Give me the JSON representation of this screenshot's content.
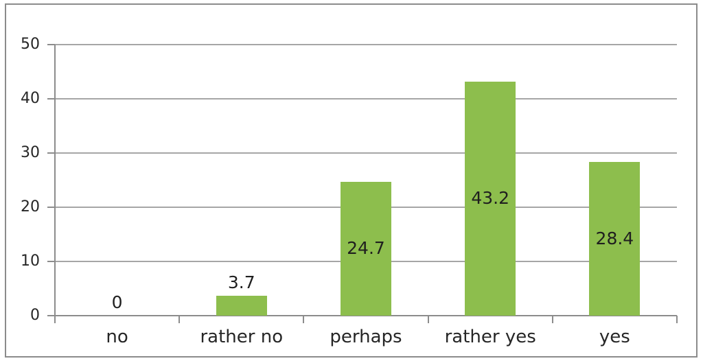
{
  "chart_data": {
    "type": "bar",
    "title": "",
    "xlabel": "",
    "ylabel": "",
    "categories": [
      "no",
      "rather no",
      "perhaps",
      "rather yes",
      "yes"
    ],
    "values": [
      0,
      3.7,
      24.7,
      43.2,
      28.4
    ],
    "labels": [
      "0",
      "3.7",
      "24.7",
      "43.2",
      "28.4"
    ],
    "yticks": [
      0,
      10,
      20,
      30,
      40,
      50
    ],
    "ylim": [
      0,
      50
    ],
    "grid": true,
    "legend": false,
    "colors": {
      "bar": "#8dbe4d",
      "gridline": "#a6a6a6",
      "axis": "#8c8c8c",
      "frame_border": "#8b8b8b",
      "text": "#262626",
      "background": "#ffffff"
    }
  }
}
